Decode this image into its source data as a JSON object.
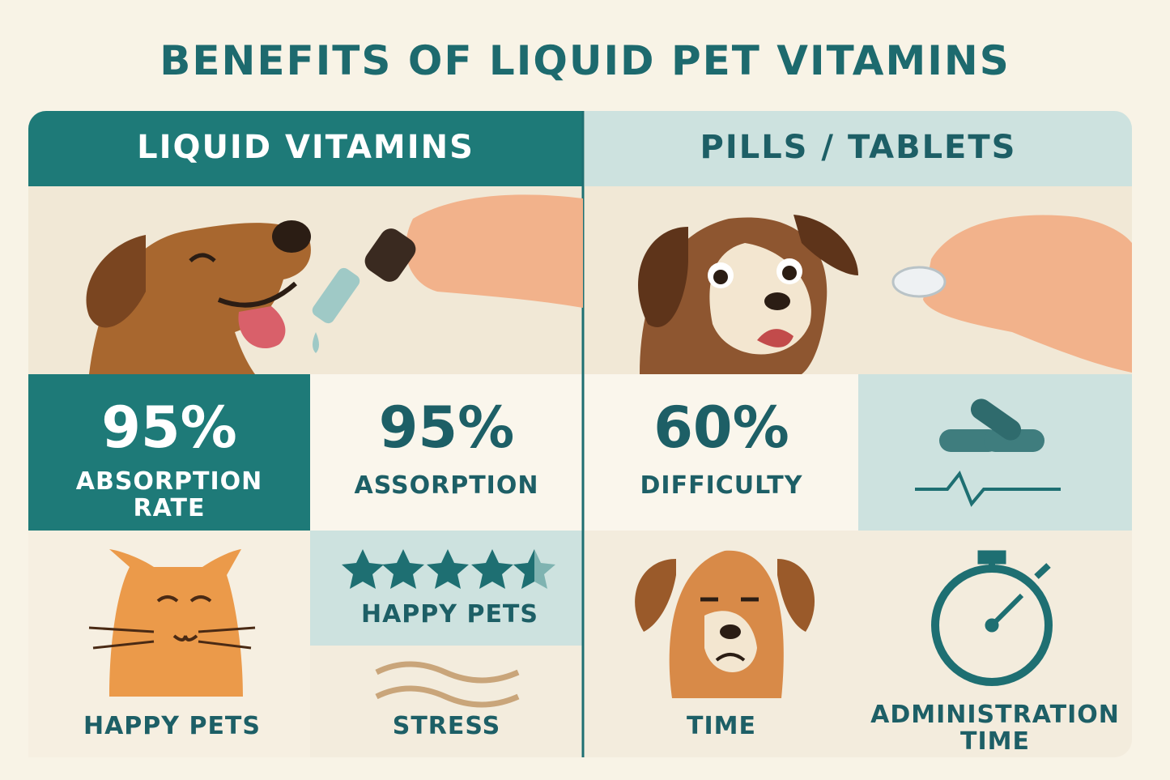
{
  "title": "BENEFITS OF LIQUID PET VITAMINS",
  "left": {
    "header": "LIQUID VITAMINS",
    "tiles": [
      {
        "value": "95%",
        "label": "ABSORPTION RATE"
      },
      {
        "value": "95%",
        "label": "ASSORPTION"
      },
      {
        "label": "HAPPY PETS"
      },
      {
        "label": "HAPPY PETS"
      },
      {
        "label": "STRESS"
      }
    ]
  },
  "right": {
    "header": "PILLS / TABLETS",
    "tiles": [
      {
        "value": "60%",
        "label": "DIFFICULTY"
      },
      {
        "label": "TIME"
      },
      {
        "label": "ADMINISTRATION TIME"
      }
    ]
  }
}
